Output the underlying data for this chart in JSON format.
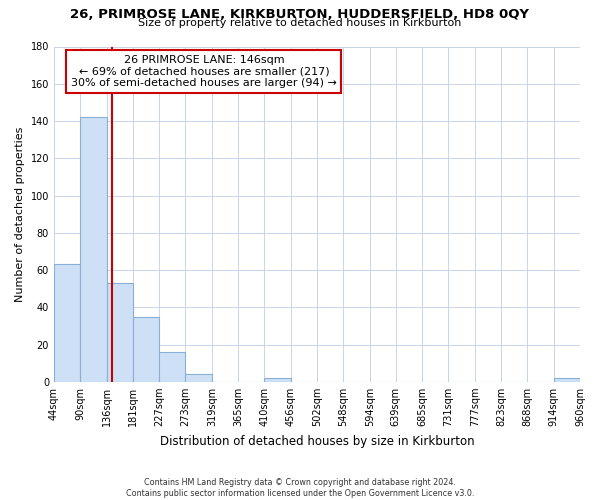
{
  "title": "26, PRIMROSE LANE, KIRKBURTON, HUDDERSFIELD, HD8 0QY",
  "subtitle": "Size of property relative to detached houses in Kirkburton",
  "xlabel": "Distribution of detached houses by size in Kirkburton",
  "ylabel": "Number of detached properties",
  "bar_edges": [
    44,
    90,
    136,
    181,
    227,
    273,
    319,
    365,
    410,
    456,
    502,
    548,
    594,
    639,
    685,
    731,
    777,
    823,
    868,
    914,
    960
  ],
  "bar_heights": [
    63,
    142,
    53,
    35,
    16,
    4,
    0,
    0,
    2,
    0,
    0,
    0,
    0,
    0,
    0,
    0,
    0,
    0,
    0,
    2
  ],
  "bar_color": "#cde0f5",
  "bar_edge_color": "#8aafd4",
  "vline_x": 146,
  "vline_color": "#cc0000",
  "annotation_box_color": "#ffffff",
  "annotation_box_edge": "#cc0000",
  "annotation_lines": [
    "26 PRIMROSE LANE: 146sqm",
    "← 69% of detached houses are smaller (217)",
    "30% of semi-detached houses are larger (94) →"
  ],
  "ylim": [
    0,
    180
  ],
  "yticks": [
    0,
    20,
    40,
    60,
    80,
    100,
    120,
    140,
    160,
    180
  ],
  "tick_labels": [
    "44sqm",
    "90sqm",
    "136sqm",
    "181sqm",
    "227sqm",
    "273sqm",
    "319sqm",
    "365sqm",
    "410sqm",
    "456sqm",
    "502sqm",
    "548sqm",
    "594sqm",
    "639sqm",
    "685sqm",
    "731sqm",
    "777sqm",
    "823sqm",
    "868sqm",
    "914sqm",
    "960sqm"
  ],
  "footer_line1": "Contains HM Land Registry data © Crown copyright and database right 2024.",
  "footer_line2": "Contains public sector information licensed under the Open Government Licence v3.0.",
  "background_color": "#ffffff",
  "grid_color": "#c8d4e8"
}
